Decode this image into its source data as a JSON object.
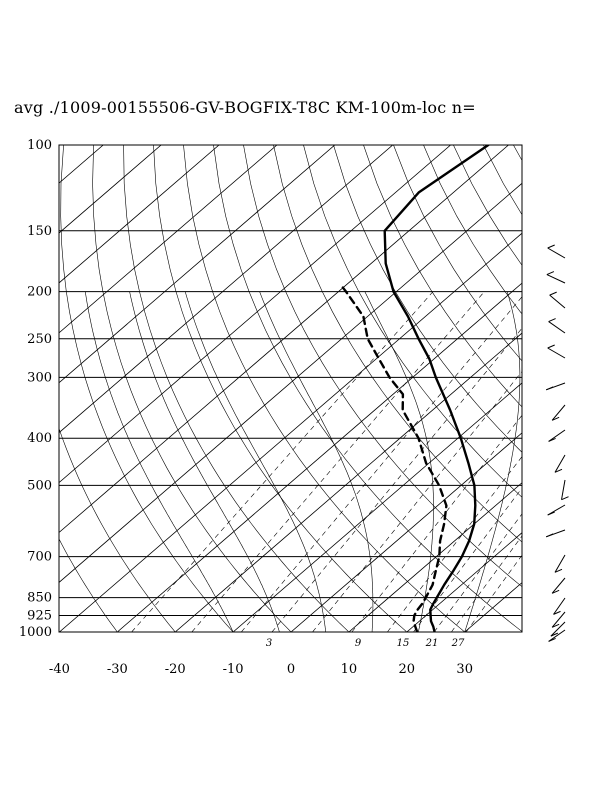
{
  "title": "avg ./1009-00155506-GV-BOGFIX-T8C KM-100m-loc n=",
  "chart_data": {
    "type": "skew-t log-p sounding",
    "title": "avg ./1009-00155506-GV-BOGFIX-T8C KM-100m-loc n=",
    "x_axis": {
      "ticks": [
        -40,
        -30,
        -20,
        -10,
        0,
        10,
        20,
        30
      ],
      "range": [
        -40,
        40
      ]
    },
    "y_axis": {
      "scale": "log",
      "ticks": [
        100,
        150,
        200,
        250,
        300,
        400,
        500,
        700,
        850,
        925,
        1000
      ],
      "range": [
        1000,
        100
      ]
    },
    "mixing_ratio_labels": [
      "3",
      "9",
      "15",
      "21",
      "27"
    ],
    "grid": true,
    "series": [
      {
        "role": "temperature",
        "style": "solid",
        "points": [
          [
            1000,
            24.8
          ],
          [
            975,
            23.5
          ],
          [
            950,
            22.0
          ],
          [
            925,
            20.8
          ],
          [
            900,
            19.6
          ],
          [
            875,
            18.9
          ],
          [
            850,
            18.3
          ],
          [
            800,
            17.0
          ],
          [
            750,
            15.8
          ],
          [
            700,
            14.4
          ],
          [
            650,
            12.5
          ],
          [
            600,
            10.0
          ],
          [
            550,
            6.5
          ],
          [
            500,
            2.3
          ],
          [
            450,
            -3.2
          ],
          [
            400,
            -9.5
          ],
          [
            350,
            -17.0
          ],
          [
            300,
            -26.0
          ],
          [
            275,
            -30.8
          ],
          [
            250,
            -36.7
          ],
          [
            225,
            -43.0
          ],
          [
            200,
            -50.5
          ],
          [
            175,
            -57.5
          ],
          [
            150,
            -64.2
          ],
          [
            125,
            -66.0
          ],
          [
            100,
            -63.5
          ]
        ]
      },
      {
        "role": "dewpoint",
        "style": "dashed",
        "points": [
          [
            1000,
            21.8
          ],
          [
            975,
            20.4
          ],
          [
            950,
            19.0
          ],
          [
            925,
            18.0
          ],
          [
            900,
            17.4
          ],
          [
            875,
            17.0
          ],
          [
            850,
            16.4
          ],
          [
            800,
            15.0
          ],
          [
            750,
            12.8
          ],
          [
            700,
            10.5
          ],
          [
            650,
            7.5
          ],
          [
            600,
            4.8
          ],
          [
            550,
            1.5
          ],
          [
            500,
            -3.8
          ],
          [
            450,
            -10.5
          ],
          [
            400,
            -16.8
          ],
          [
            350,
            -25.2
          ],
          [
            325,
            -28.3
          ],
          [
            300,
            -34.0
          ],
          [
            275,
            -39.5
          ],
          [
            250,
            -45.5
          ],
          [
            225,
            -50.7
          ],
          [
            200,
            -58.7
          ],
          [
            195,
            -60.5
          ]
        ]
      }
    ],
    "wind_barbs_present": true
  },
  "chart_colors": {
    "line": "#000000",
    "background": "#ffffff"
  }
}
